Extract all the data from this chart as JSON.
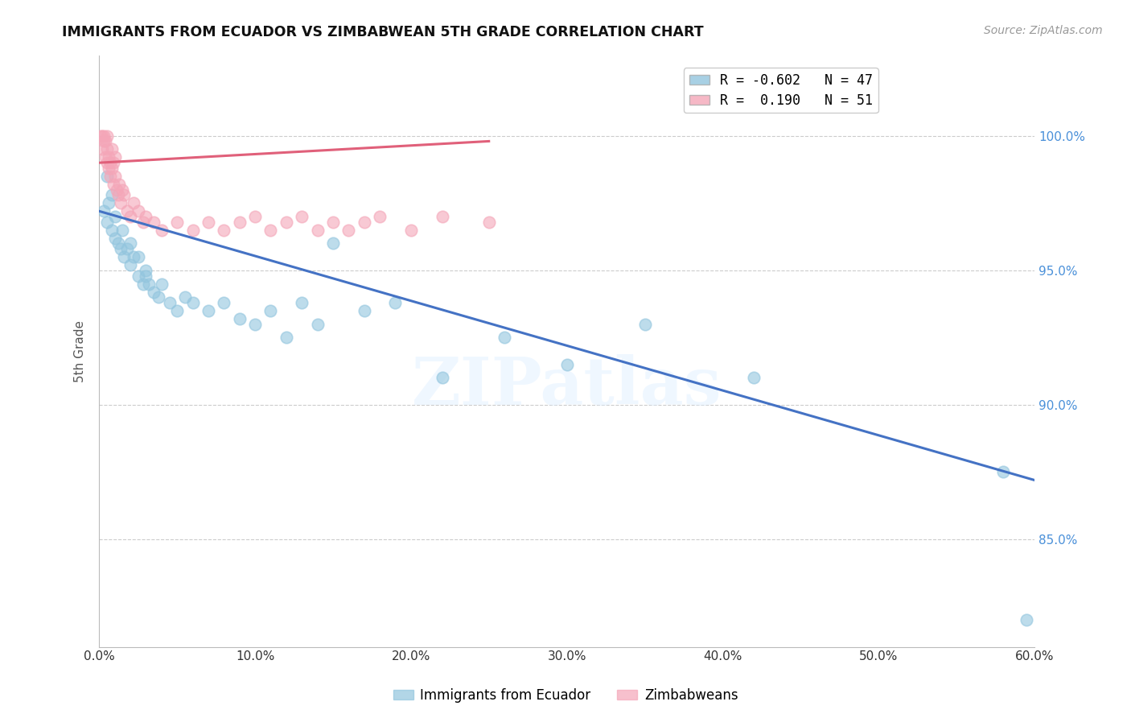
{
  "title": "IMMIGRANTS FROM ECUADOR VS ZIMBABWEAN 5TH GRADE CORRELATION CHART",
  "source": "Source: ZipAtlas.com",
  "ylabel": "5th Grade",
  "x_tick_labels": [
    "0.0%",
    "10.0%",
    "20.0%",
    "30.0%",
    "40.0%",
    "50.0%",
    "60.0%"
  ],
  "x_tick_values": [
    0,
    10,
    20,
    30,
    40,
    50,
    60
  ],
  "y_tick_labels": [
    "85.0%",
    "90.0%",
    "95.0%",
    "100.0%"
  ],
  "y_tick_values": [
    85,
    90,
    95,
    100
  ],
  "xlim": [
    0,
    60
  ],
  "ylim": [
    81,
    103
  ],
  "legend_label1": "Immigrants from Ecuador",
  "legend_label2": "Zimbabweans",
  "blue_color": "#92c5de",
  "pink_color": "#f4a6b8",
  "blue_line_color": "#4472c4",
  "pink_line_color": "#e0607a",
  "watermark_text": "ZIPatlas",
  "blue_legend_label": "R = -0.602   N = 47",
  "pink_legend_label": "R =  0.190   N = 51",
  "blue_scatter_x": [
    0.3,
    0.5,
    0.5,
    0.6,
    0.8,
    0.8,
    1.0,
    1.0,
    1.2,
    1.4,
    1.5,
    1.6,
    1.8,
    2.0,
    2.0,
    2.2,
    2.5,
    2.5,
    2.8,
    3.0,
    3.0,
    3.2,
    3.5,
    3.8,
    4.0,
    4.5,
    5.0,
    5.5,
    6.0,
    7.0,
    8.0,
    9.0,
    10.0,
    11.0,
    12.0,
    13.0,
    14.0,
    15.0,
    17.0,
    19.0,
    22.0,
    26.0,
    30.0,
    35.0,
    42.0,
    58.0,
    59.5
  ],
  "blue_scatter_y": [
    97.2,
    96.8,
    98.5,
    97.5,
    96.5,
    97.8,
    96.2,
    97.0,
    96.0,
    95.8,
    96.5,
    95.5,
    95.8,
    95.2,
    96.0,
    95.5,
    94.8,
    95.5,
    94.5,
    94.8,
    95.0,
    94.5,
    94.2,
    94.0,
    94.5,
    93.8,
    93.5,
    94.0,
    93.8,
    93.5,
    93.8,
    93.2,
    93.0,
    93.5,
    92.5,
    93.8,
    93.0,
    96.0,
    93.5,
    93.8,
    91.0,
    92.5,
    91.5,
    93.0,
    91.0,
    87.5,
    82.0
  ],
  "pink_scatter_x": [
    0.1,
    0.2,
    0.2,
    0.3,
    0.3,
    0.4,
    0.4,
    0.5,
    0.5,
    0.5,
    0.6,
    0.6,
    0.7,
    0.7,
    0.8,
    0.8,
    0.9,
    0.9,
    1.0,
    1.0,
    1.1,
    1.2,
    1.3,
    1.4,
    1.5,
    1.6,
    1.8,
    2.0,
    2.2,
    2.5,
    2.8,
    3.0,
    3.5,
    4.0,
    5.0,
    6.0,
    7.0,
    8.0,
    9.0,
    10.0,
    11.0,
    12.0,
    13.0,
    14.0,
    15.0,
    16.0,
    17.0,
    18.0,
    20.0,
    22.0,
    25.0
  ],
  "pink_scatter_y": [
    100.0,
    99.5,
    100.0,
    99.8,
    100.0,
    99.2,
    99.8,
    99.0,
    99.5,
    100.0,
    98.8,
    99.2,
    98.5,
    99.0,
    98.8,
    99.5,
    98.2,
    99.0,
    98.5,
    99.2,
    98.0,
    97.8,
    98.2,
    97.5,
    98.0,
    97.8,
    97.2,
    97.0,
    97.5,
    97.2,
    96.8,
    97.0,
    96.8,
    96.5,
    96.8,
    96.5,
    96.8,
    96.5,
    96.8,
    97.0,
    96.5,
    96.8,
    97.0,
    96.5,
    96.8,
    96.5,
    96.8,
    97.0,
    96.5,
    97.0,
    96.8
  ],
  "blue_line_x": [
    0,
    60
  ],
  "blue_line_y": [
    97.2,
    87.2
  ],
  "pink_line_x": [
    0,
    25
  ],
  "pink_line_y": [
    99.0,
    99.8
  ]
}
